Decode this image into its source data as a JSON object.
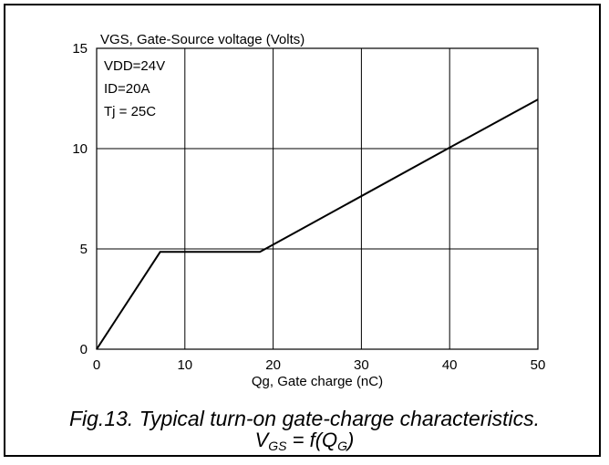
{
  "chart_data": {
    "type": "line",
    "title": "",
    "ylabel": "VGS, Gate-Source voltage (Volts)",
    "xlabel": "Qg, Gate charge (nC)",
    "xlim": [
      0,
      50
    ],
    "ylim": [
      0,
      15
    ],
    "xticks": [
      0,
      10,
      20,
      30,
      40,
      50
    ],
    "yticks": [
      0,
      5,
      10,
      15
    ],
    "grid": true,
    "annotations": [
      "VDD=24V",
      "ID=20A",
      "Tj = 25C"
    ],
    "series": [
      {
        "x": [
          0,
          7.2,
          18.5,
          40,
          50
        ],
        "y": [
          0,
          4.85,
          4.85,
          10.05,
          12.45
        ]
      }
    ]
  },
  "caption": {
    "line1": "Fig.13.  Typical turn-on gate-charge characteristics.",
    "line2_a": "V",
    "line2_sub_a": "GS",
    "line2_b": " = f(Q",
    "line2_sub_b": "G",
    "line2_c": ")"
  }
}
